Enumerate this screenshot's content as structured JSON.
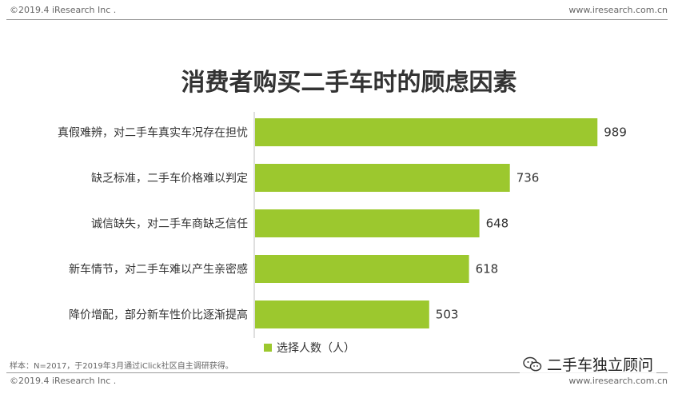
{
  "header": {
    "copyright": "©2019.4 iResearch Inc .",
    "website": "www.iresearch.com.cn"
  },
  "footer": {
    "note": "样本：N=2017，于2019年3月通过iClick社区自主调研获得。",
    "copyright": "©2019.4 iResearch Inc .",
    "website": "www.iresearch.com.cn"
  },
  "watermark": {
    "text": "二手车独立顾问",
    "icon": "wechat-icon"
  },
  "chart_data": {
    "type": "bar",
    "orientation": "horizontal",
    "title": "消费者购买二手车时的顾虑因素",
    "categories": [
      "真假难辨，对二手车真实车况存在担忧",
      "缺乏标准，二手车价格难以判定",
      "诚信缺失，对二手车商缺乏信任",
      "新车情节，对二手车难以产生亲密感",
      "降价增配，部分新车性价比逐渐提高"
    ],
    "series": [
      {
        "name": "选择人数（人）",
        "values": [
          989,
          736,
          648,
          618,
          503
        ],
        "color": "#9cc82e"
      }
    ],
    "xlim": [
      0,
      1000
    ],
    "grid": false,
    "legend": "bottom-center"
  }
}
